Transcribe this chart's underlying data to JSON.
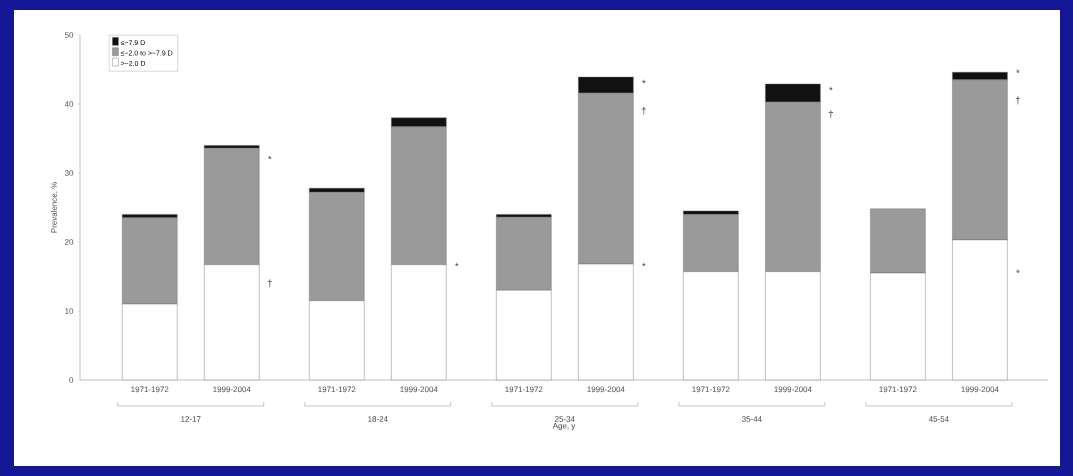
{
  "chart_data": {
    "type": "bar",
    "stacked": true,
    "xlabel": "Age, y",
    "ylabel": "Prevalence, %",
    "categories": [
      "1971-1972",
      "1999-2004",
      "1971-1972",
      "1999-2004",
      "1971-1972",
      "1999-2004",
      "1971-1972",
      "1999-2004",
      "1971-1972",
      "1999-2004"
    ],
    "series": [
      {
        "name": ">−2.0 D",
        "color": "#ffffff",
        "values": [
          11,
          16.7,
          11.5,
          16.7,
          13,
          16.8,
          15.7,
          15.7,
          15.5,
          20.3
        ]
      },
      {
        "name": "≤−2.0 to >−7.9 D",
        "color": "#9a9a9a",
        "values": [
          12.5,
          16.9,
          15.7,
          20,
          10.6,
          24.8,
          8.3,
          24.6,
          9.3,
          23.2
        ]
      },
      {
        "name": "≤−7.9 D",
        "color": "#111111",
        "values": [
          0.5,
          0.4,
          0.6,
          1.3,
          0.4,
          2.3,
          0.5,
          2.6,
          0,
          1.1
        ]
      }
    ],
    "ylim": [
      0,
      50
    ],
    "yticks": [
      0,
      10,
      20,
      30,
      40,
      50
    ],
    "legend": "top left",
    "grid": false,
    "annotations": [
      "12-17",
      "18-24",
      "25-34",
      "35-44",
      "45-54",
      "*",
      "†",
      "*",
      "*",
      "†",
      "*",
      "*",
      "†",
      "*",
      "†",
      "*"
    ]
  }
}
